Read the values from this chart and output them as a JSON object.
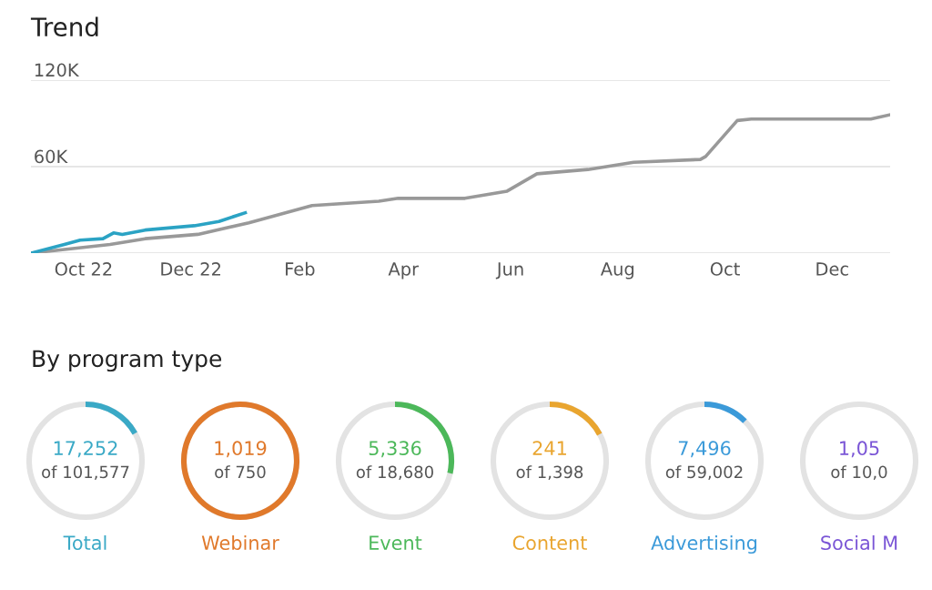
{
  "chart_data": [
    {
      "type": "line",
      "title": "Trend",
      "xlim": [
        "2022-09-01",
        "2024-01-03"
      ],
      "xticks": [
        {
          "value": "2022-10-01",
          "label": "Oct 22"
        },
        {
          "value": "2022-12-01",
          "label": "Dec 22"
        },
        {
          "value": "2023-02-01",
          "label": "Feb"
        },
        {
          "value": "2023-04-01",
          "label": "Apr"
        },
        {
          "value": "2023-06-01",
          "label": "Jun"
        },
        {
          "value": "2023-08-01",
          "label": "Aug"
        },
        {
          "value": "2023-10-01",
          "label": "Oct"
        },
        {
          "value": "2023-12-01",
          "label": "Dec"
        }
      ],
      "ylim": [
        0,
        120000
      ],
      "yticks": [
        {
          "value": 0,
          "label": null
        },
        {
          "value": 60000,
          "label": "60K"
        },
        {
          "value": 120000,
          "label": "120K"
        }
      ],
      "grid": "y",
      "legend": false,
      "marker": "none",
      "line_style": "solid",
      "series": [
        {
          "color": "#999999",
          "x": [
            "2022-09-01",
            "2022-10-16",
            "2022-11-05",
            "2022-12-05",
            "2023-01-03",
            "2023-02-08",
            "2023-03-18",
            "2023-03-29",
            "2023-05-06",
            "2023-05-30",
            "2023-06-16",
            "2023-07-15",
            "2023-08-10",
            "2023-09-17",
            "2023-09-20",
            "2023-10-08",
            "2023-10-16",
            "2023-12-23",
            "2024-01-03"
          ],
          "values": [
            0,
            6000,
            10000,
            13000,
            21000,
            33000,
            36000,
            38000,
            38000,
            43000,
            55000,
            58000,
            63000,
            65000,
            67000,
            92000,
            93000,
            93000,
            96000
          ]
        },
        {
          "color": "#2ba3c4",
          "x": [
            "2022-09-01",
            "2022-09-20",
            "2022-09-29",
            "2022-10-12",
            "2022-10-18",
            "2022-10-23",
            "2022-11-05",
            "2022-12-03",
            "2022-12-17",
            "2023-01-01"
          ],
          "values": [
            0,
            6000,
            9000,
            10000,
            14000,
            13000,
            16000,
            19000,
            22000,
            28000
          ]
        }
      ]
    },
    {
      "type": "other",
      "title": "By program type",
      "categories": [
        "Total",
        "Webinar",
        "Event",
        "Content",
        "Advertising",
        "Social M"
      ],
      "colors": [
        "#3aa9c6",
        "#e0792b",
        "#4cb85a",
        "#e9a52f",
        "#3b9ad9",
        "#7a55d6"
      ],
      "values": [
        17252,
        1019,
        5336,
        241,
        7496,
        null
      ],
      "value_labels": [
        "17,252",
        "1,019",
        "5,336",
        "241",
        "7,496",
        "1,05"
      ],
      "totals": [
        "of 101,577",
        "of 750",
        "of 18,680",
        "of 1,398",
        "of 59,002",
        "of 10,0"
      ]
    }
  ]
}
